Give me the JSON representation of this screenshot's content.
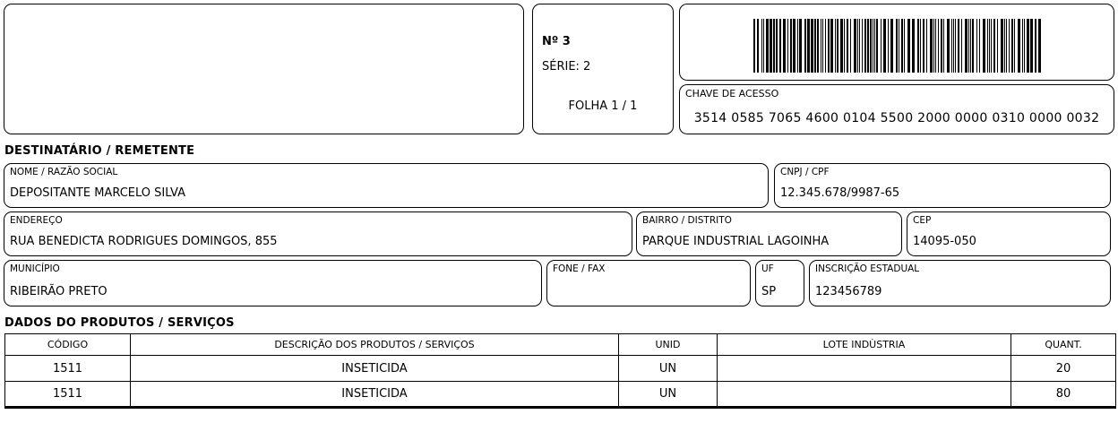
{
  "header": {
    "numero": "Nº 3",
    "serie": "SÉRIE: 2",
    "folha": "FOLHA 1 / 1",
    "chave_label": "CHAVE DE ACESSO",
    "chave_value": "3514 0585 7065 4600 0104 5500 2000 0000 0310 0000 0032"
  },
  "destinatario": {
    "section_title": "DESTINATÁRIO / REMETENTE",
    "fields": {
      "nome": {
        "label": "NOME / RAZÃO SOCIAL",
        "value": "DEPOSITANTE MARCELO SILVA"
      },
      "cnpj": {
        "label": "CNPJ / CPF",
        "value": "12.345.678/9987-65"
      },
      "endereco": {
        "label": "ENDEREÇO",
        "value": "RUA BENEDICTA RODRIGUES DOMINGOS, 855"
      },
      "bairro": {
        "label": "BAIRRO / DISTRITO",
        "value": "PARQUE INDUSTRIAL LAGOINHA"
      },
      "cep": {
        "label": "CEP",
        "value": "14095-050"
      },
      "municipio": {
        "label": "MUNICÍPIO",
        "value": "RIBEIRÃO PRETO"
      },
      "fone": {
        "label": "FONE / FAX",
        "value": ""
      },
      "uf": {
        "label": "UF",
        "value": "SP"
      },
      "ie": {
        "label": "INSCRIÇÃO ESTADUAL",
        "value": "123456789"
      }
    }
  },
  "produtos": {
    "section_title": "DADOS DO PRODUTOS / SERVIÇOS",
    "columns": [
      "CÓDIGO",
      "DESCRIÇÃO DOS PRODUTOS / SERVIÇOS",
      "UNID",
      "LOTE INDÙSTRIA",
      "QUANT."
    ],
    "rows": [
      [
        "1511",
        "INSETICIDA",
        "UN",
        "",
        "20"
      ],
      [
        "1511",
        "INSETICIDA",
        "UN",
        "",
        "80"
      ]
    ]
  },
  "colors": {
    "ink": "#000000",
    "paper": "#ffffff"
  }
}
